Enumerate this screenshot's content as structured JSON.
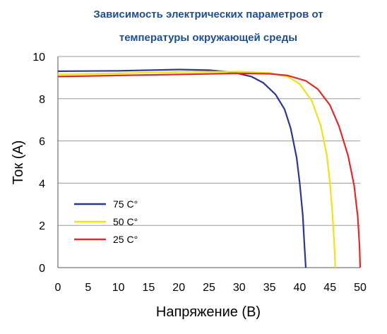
{
  "chart_data": {
    "type": "line",
    "title_line1": "Зависимость электрических параметров от",
    "title_line2": "температуры окружающей среды",
    "title_color": "#1f4e8c",
    "xlabel": "Напряжение (В)",
    "ylabel": "Ток (А)",
    "xlim": [
      0,
      50
    ],
    "ylim": [
      0,
      10
    ],
    "xticks": [
      0,
      5,
      10,
      15,
      20,
      25,
      30,
      35,
      40,
      45,
      50
    ],
    "yticks": [
      0,
      2,
      4,
      6,
      8,
      10
    ],
    "grid": "horizontal",
    "legend_position": "lower-left",
    "series": [
      {
        "name": "75 C°",
        "color": "#2b3890",
        "points": [
          [
            0,
            9.3
          ],
          [
            10,
            9.32
          ],
          [
            20,
            9.38
          ],
          [
            25,
            9.35
          ],
          [
            29,
            9.25
          ],
          [
            32,
            9.05
          ],
          [
            34,
            8.75
          ],
          [
            36,
            8.2
          ],
          [
            37.5,
            7.5
          ],
          [
            38.5,
            6.6
          ],
          [
            39.5,
            5.2
          ],
          [
            40,
            4.0
          ],
          [
            40.5,
            2.5
          ],
          [
            40.8,
            1.0
          ],
          [
            41,
            0
          ]
        ]
      },
      {
        "name": "50 C°",
        "color": "#f0e11a",
        "points": [
          [
            0,
            9.15
          ],
          [
            10,
            9.2
          ],
          [
            20,
            9.27
          ],
          [
            30,
            9.28
          ],
          [
            35,
            9.22
          ],
          [
            38,
            9.05
          ],
          [
            40,
            8.7
          ],
          [
            42,
            7.9
          ],
          [
            43.5,
            6.7
          ],
          [
            44.5,
            5.3
          ],
          [
            45,
            4.0
          ],
          [
            45.4,
            2.6
          ],
          [
            45.7,
            1.2
          ],
          [
            45.9,
            0
          ]
        ]
      },
      {
        "name": "25 C°",
        "color": "#e02b2b",
        "points": [
          [
            0,
            9.05
          ],
          [
            10,
            9.1
          ],
          [
            20,
            9.15
          ],
          [
            30,
            9.2
          ],
          [
            35,
            9.18
          ],
          [
            38,
            9.1
          ],
          [
            41,
            8.85
          ],
          [
            43,
            8.45
          ],
          [
            45,
            7.7
          ],
          [
            46.5,
            6.7
          ],
          [
            48,
            5.3
          ],
          [
            49,
            3.9
          ],
          [
            49.6,
            2.4
          ],
          [
            49.9,
            1.0
          ],
          [
            50,
            0
          ]
        ]
      }
    ]
  }
}
